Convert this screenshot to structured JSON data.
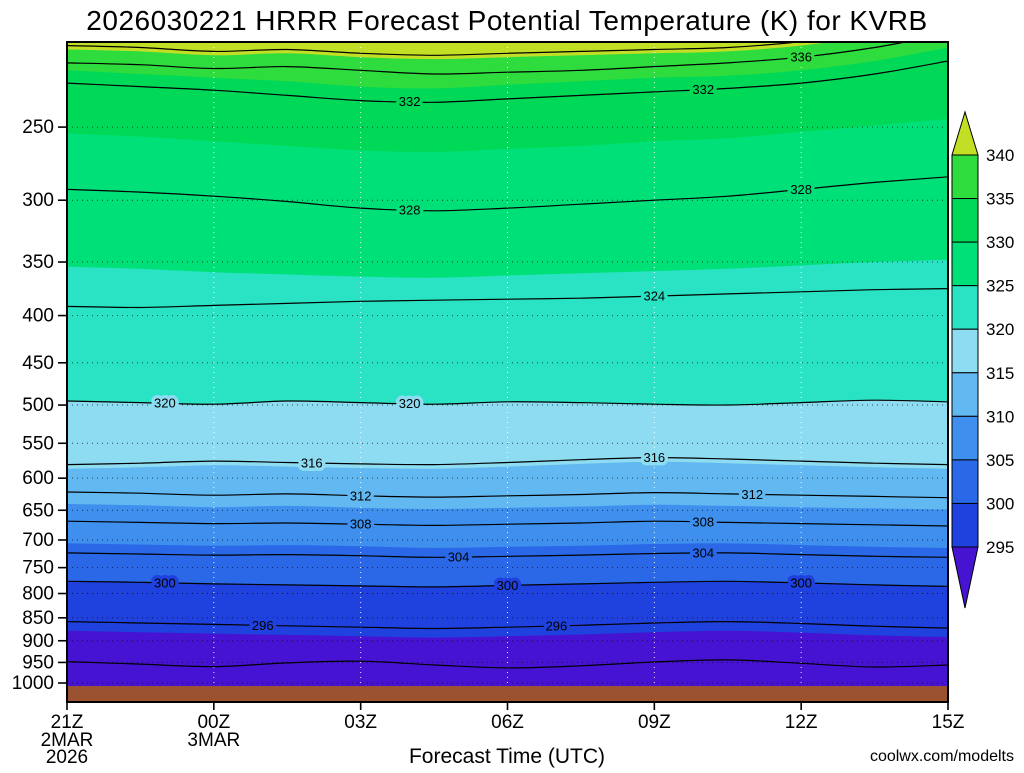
{
  "title": "2026030221 HRRR Forecast Potential Temperature (K) for KVRB",
  "watermark": {
    "text": "coolwx.com/modelts",
    "color": "#ef6a4c"
  },
  "chart_data": {
    "type": "filled-contour",
    "title": "2026030221 HRRR Forecast Potential Temperature (K) for KVRB",
    "xlabel": "Forecast Time (UTC)",
    "x": {
      "tick_hours": [
        0,
        3,
        6,
        9,
        12,
        15,
        18
      ],
      "tick_labels": [
        "21Z",
        "00Z",
        "03Z",
        "06Z",
        "09Z",
        "12Z",
        "15Z"
      ],
      "date_labels": [
        {
          "hour": 0,
          "lines": [
            "2MAR",
            "2026"
          ]
        },
        {
          "hour": 3,
          "lines": [
            "3MAR"
          ]
        }
      ],
      "hours_range": [
        0,
        18
      ]
    },
    "y": {
      "scale": "log",
      "ticks": [
        250,
        300,
        350,
        400,
        450,
        500,
        550,
        600,
        650,
        700,
        750,
        800,
        850,
        900,
        950,
        1000
      ]
    },
    "sample_hours": [
      0,
      1.5,
      3,
      4.5,
      6,
      7.5,
      9,
      10.5,
      12,
      13.5,
      15,
      16.5,
      18
    ],
    "base_color": "#4713d3",
    "ground_color": "#9b5230",
    "fill_bands": [
      {
        "value": 295,
        "color": "#1f41de",
        "pressures": [
          878,
          881,
          884,
          887,
          890,
          893,
          890,
          886,
          881,
          878,
          882,
          888,
          892
        ]
      },
      {
        "value": 300,
        "color": "#2a68e8",
        "pressures": [
          776,
          778,
          781,
          783,
          785,
          787,
          784,
          781,
          778,
          776,
          779,
          783,
          786
        ]
      },
      {
        "value": 305,
        "color": "#3f90ee",
        "pressures": [
          706,
          708,
          710,
          709,
          711,
          714,
          712,
          710,
          707,
          706,
          709,
          712,
          714
        ]
      },
      {
        "value": 310,
        "color": "#62b8f0",
        "pressures": [
          640,
          642,
          645,
          643,
          646,
          648,
          646,
          644,
          641,
          643,
          645,
          647,
          649
        ]
      },
      {
        "value": 315,
        "color": "#8edcf2",
        "pressures": [
          586,
          584,
          581,
          583,
          585,
          586,
          583,
          579,
          576,
          578,
          581,
          584,
          586
        ]
      },
      {
        "value": 320,
        "color": "#29e3c4",
        "pressures": [
          495,
          497,
          499,
          495,
          497,
          499,
          496,
          497,
          499,
          500,
          497,
          494,
          496
        ]
      },
      {
        "value": 325,
        "color": "#00e078",
        "pressures": [
          354,
          356,
          359,
          361,
          363,
          364,
          362,
          360,
          358,
          356,
          353,
          350,
          348
        ]
      },
      {
        "value": 330,
        "color": "#00d957",
        "pressures": [
          254,
          256,
          259,
          262,
          265,
          266,
          264,
          262,
          259,
          257,
          253,
          249,
          245
        ]
      },
      {
        "value": 335,
        "color": "#2edc3e",
        "pressures": [
          217,
          219,
          221,
          223,
          226,
          227,
          225,
          223,
          221,
          220,
          217,
          212,
          205
        ]
      },
      {
        "value": 340,
        "color": "#c3df25",
        "pressures": [
          206,
          207,
          209,
          208,
          210,
          211,
          210,
          209,
          208,
          207,
          204,
          199,
          192
        ]
      }
    ],
    "contour_lines": [
      {
        "value": 340,
        "pressures": [
          204,
          205,
          207,
          206,
          208,
          209,
          208,
          207,
          206,
          205,
          202,
          197,
          190
        ]
      },
      {
        "value": 336,
        "pressures": [
          213,
          214,
          216,
          215,
          217,
          219,
          218,
          217,
          215,
          213,
          210,
          205,
          198
        ]
      },
      {
        "value": 332,
        "pressures": [
          224,
          226,
          228,
          231,
          234,
          235,
          233,
          231,
          229,
          227,
          224,
          219,
          212
        ]
      },
      {
        "value": 328,
        "pressures": [
          292,
          294,
          297,
          301,
          306,
          308,
          306,
          303,
          300,
          297,
          292,
          287,
          283
        ]
      },
      {
        "value": 324,
        "pressures": [
          391,
          392,
          390,
          388,
          386,
          385,
          384,
          383,
          381,
          379,
          377,
          375,
          374
        ]
      },
      {
        "value": 320,
        "pressures": [
          495,
          497,
          499,
          495,
          497,
          499,
          496,
          497,
          499,
          500,
          497,
          494,
          496
        ]
      },
      {
        "value": 316,
        "pressures": [
          580,
          578,
          575,
          577,
          579,
          580,
          577,
          573,
          570,
          572,
          575,
          578,
          580
        ]
      },
      {
        "value": 312,
        "pressures": [
          621,
          623,
          626,
          624,
          627,
          629,
          627,
          625,
          622,
          624,
          626,
          628,
          630
        ]
      },
      {
        "value": 308,
        "pressures": [
          668,
          670,
          672,
          671,
          673,
          675,
          673,
          671,
          668,
          670,
          672,
          674,
          676
        ]
      },
      {
        "value": 304,
        "pressures": [
          723,
          725,
          727,
          726,
          728,
          731,
          729,
          727,
          724,
          723,
          726,
          729,
          731
        ]
      },
      {
        "value": 300,
        "pressures": [
          776,
          778,
          781,
          783,
          785,
          787,
          784,
          781,
          778,
          776,
          779,
          783,
          786
        ]
      },
      {
        "value": 296,
        "pressures": [
          858,
          861,
          864,
          867,
          870,
          873,
          870,
          866,
          861,
          858,
          862,
          868,
          872
        ]
      },
      {
        "value": 292,
        "pressures": [
          948,
          954,
          960,
          951,
          947,
          956,
          963,
          958,
          949,
          944,
          952,
          961,
          956
        ]
      }
    ],
    "contour_labels": [
      {
        "text": "336",
        "level": 336,
        "hour": 15,
        "bg": "#2edc3e"
      },
      {
        "text": "332",
        "level": 332,
        "hour": 7,
        "bg": "#00d957"
      },
      {
        "text": "332",
        "level": 332,
        "hour": 13,
        "bg": "#00d957"
      },
      {
        "text": "328",
        "level": 328,
        "hour": 7,
        "bg": "#00e078"
      },
      {
        "text": "328",
        "level": 328,
        "hour": 15,
        "bg": "#00e078"
      },
      {
        "text": "324",
        "level": 324,
        "hour": 12,
        "bg": "#29e3c4"
      },
      {
        "text": "320",
        "level": 320,
        "hour": 2,
        "bg": "#8edcf2"
      },
      {
        "text": "320",
        "level": 320,
        "hour": 7,
        "bg": "#8edcf2"
      },
      {
        "text": "316",
        "level": 316,
        "hour": 5,
        "bg": "#8edcf2"
      },
      {
        "text": "316",
        "level": 316,
        "hour": 12,
        "bg": "#8edcf2"
      },
      {
        "text": "312",
        "level": 312,
        "hour": 6,
        "bg": "#62b8f0"
      },
      {
        "text": "312",
        "level": 312,
        "hour": 14,
        "bg": "#62b8f0"
      },
      {
        "text": "308",
        "level": 308,
        "hour": 6,
        "bg": "#3f90ee"
      },
      {
        "text": "308",
        "level": 308,
        "hour": 13,
        "bg": "#3f90ee"
      },
      {
        "text": "304",
        "level": 304,
        "hour": 8,
        "bg": "#2a68e8"
      },
      {
        "text": "304",
        "level": 304,
        "hour": 13,
        "bg": "#2a68e8"
      },
      {
        "text": "300",
        "level": 300,
        "hour": 2,
        "bg": "#1f41de"
      },
      {
        "text": "300",
        "level": 300,
        "hour": 9,
        "bg": "#1f41de"
      },
      {
        "text": "300",
        "level": 300,
        "hour": 15,
        "bg": "#1f41de"
      },
      {
        "text": "296",
        "level": 296,
        "hour": 4,
        "bg": "#1f41de"
      },
      {
        "text": "296",
        "level": 296,
        "hour": 10,
        "bg": "#1f41de"
      }
    ],
    "colorbar": {
      "tick_values": [
        340,
        335,
        330,
        325,
        320,
        315,
        310,
        305,
        300,
        295
      ],
      "colors_top_to_bottom": [
        "#c3df25",
        "#2edc3e",
        "#00d957",
        "#00e078",
        "#29e3c4",
        "#8edcf2",
        "#62b8f0",
        "#3f90ee",
        "#2a68e8",
        "#1f41de",
        "#4713d3"
      ]
    }
  }
}
